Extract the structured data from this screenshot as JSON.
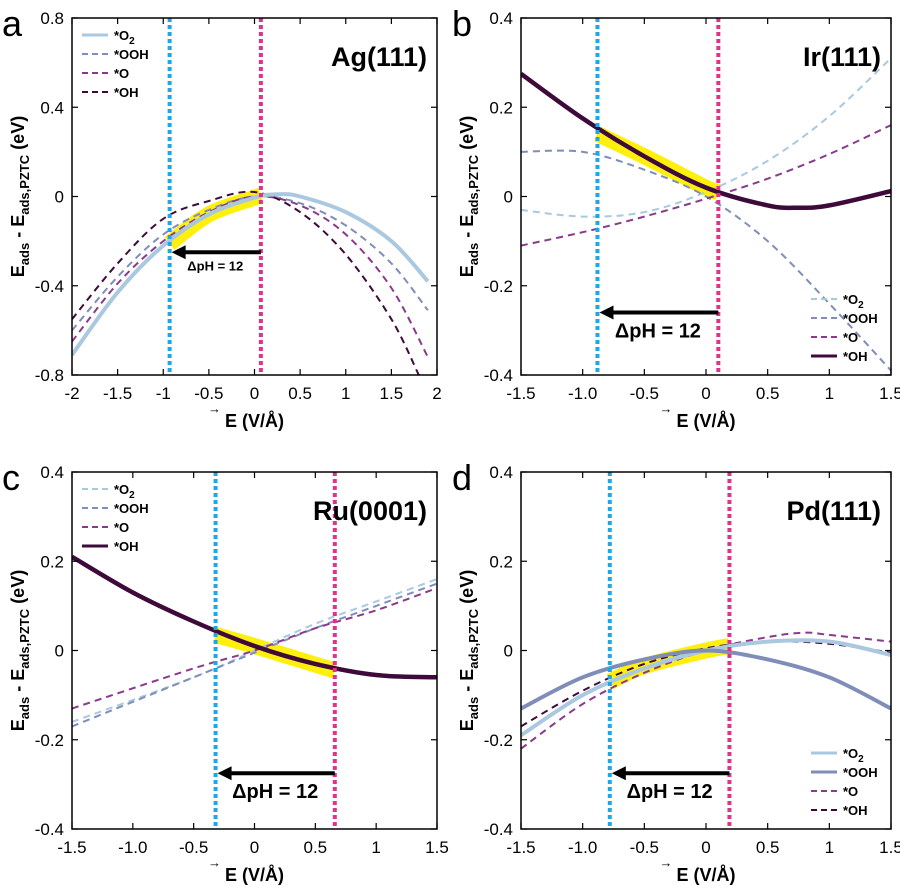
{
  "figure": {
    "ylabel_main": "E",
    "ylabel_sub1": "ads",
    "ylabel_mid": " - E",
    "ylabel_sub2": "ads,PZTC",
    "ylabel_unit": " (eV)",
    "xlabel_arrow": "→",
    "xlabel_main": "E",
    "xlabel_unit": " (V/Å)"
  },
  "colors": {
    "O2": "#aac8e0",
    "OOH": "#7f8db8",
    "O": "#8a3a8a",
    "OH": "#3d0a3a",
    "yellow": "#ffee00",
    "blue_line": "#1aa8e8",
    "pink_line": "#e0328c",
    "arrow": "#000000"
  },
  "chart_data": [
    {
      "panel_letter": "a",
      "title": "Ag(111)",
      "type": "line",
      "xlim": [
        -2,
        2
      ],
      "ylim": [
        -0.8,
        0.8
      ],
      "xticks": [
        -2,
        -1.5,
        -1,
        -0.5,
        0,
        0.5,
        1,
        1.5,
        2
      ],
      "xtick_labels": [
        "-2",
        "-1.5",
        "-1",
        "-0.5",
        "0",
        "0.5",
        "1",
        "1.5",
        "2"
      ],
      "yticks": [
        -0.8,
        -0.4,
        0,
        0.4,
        0.8
      ],
      "ytick_labels": [
        "-0.8",
        "-0.4",
        "0",
        "0.4",
        "0.8"
      ],
      "legend_position": "top-left",
      "series": [
        {
          "name": "*O2",
          "label_main": "*O",
          "label_sub": "2",
          "style": "solid",
          "color_key": "O2",
          "x": [
            -2,
            -1.5,
            -1,
            -0.5,
            0,
            0.25,
            0.5,
            1,
            1.5,
            1.9
          ],
          "y": [
            -0.71,
            -0.43,
            -0.22,
            -0.08,
            -0.005,
            0.01,
            0,
            -0.07,
            -0.2,
            -0.38
          ]
        },
        {
          "name": "*OOH",
          "label_main": "*OOH",
          "label_sub": "",
          "style": "dashed",
          "color_key": "OOH",
          "x": [
            -2,
            -1.5,
            -1,
            -0.5,
            0,
            0.5,
            1,
            1.5,
            1.9
          ],
          "y": [
            -0.6,
            -0.36,
            -0.17,
            -0.06,
            0,
            -0.03,
            -0.13,
            -0.3,
            -0.51
          ]
        },
        {
          "name": "*O",
          "label_main": "*O",
          "label_sub": "",
          "style": "dashed",
          "color_key": "O",
          "x": [
            -2,
            -1.5,
            -1,
            -0.5,
            0,
            0.5,
            1,
            1.5,
            1.9
          ],
          "y": [
            -0.65,
            -0.39,
            -0.2,
            -0.07,
            0,
            -0.04,
            -0.17,
            -0.41,
            -0.72
          ]
        },
        {
          "name": "*OH",
          "label_main": "*OH",
          "label_sub": "",
          "style": "dashed",
          "color_key": "OH",
          "x": [
            -2,
            -1.5,
            -1,
            -0.5,
            0,
            0.5,
            1,
            1.5,
            1.8
          ],
          "y": [
            -0.55,
            -0.3,
            -0.1,
            -0.02,
            0.02,
            -0.07,
            -0.26,
            -0.55,
            -0.8
          ]
        }
      ],
      "highlight": {
        "x": [
          -0.93,
          -0.5,
          0,
          0.07
        ],
        "y": [
          -0.21,
          -0.08,
          -0.005,
          0.005
        ]
      },
      "vline_blue": -0.93,
      "vline_pink": 0.07,
      "arrow": {
        "from": 0.07,
        "to": -0.93,
        "y": -0.25,
        "label": "ΔpH = 12",
        "label_size": "small"
      }
    },
    {
      "panel_letter": "b",
      "title": "Ir(111)",
      "type": "line",
      "xlim": [
        -1.5,
        1.5
      ],
      "ylim": [
        -0.4,
        0.4
      ],
      "xticks": [
        -1.5,
        -1,
        -0.5,
        0,
        0.5,
        1,
        1.5
      ],
      "xtick_labels": [
        "-1.5",
        "-1.0",
        "-0.5",
        "0",
        "0.5",
        "1",
        "1.5"
      ],
      "yticks": [
        -0.4,
        -0.2,
        0,
        0.2,
        0.4
      ],
      "ytick_labels": [
        "-0.4",
        "-0.2",
        "0",
        "0.2",
        "0.4"
      ],
      "legend_position": "bottom-right",
      "series": [
        {
          "name": "*O2",
          "label_main": "*O",
          "label_sub": "2",
          "style": "dashed",
          "color_key": "O2",
          "x": [
            -1.5,
            -1.0,
            -0.5,
            0,
            0.5,
            1.0,
            1.5
          ],
          "y": [
            -0.03,
            -0.045,
            -0.035,
            0.01,
            0.08,
            0.18,
            0.31
          ]
        },
        {
          "name": "*OOH",
          "label_main": "*OOH",
          "label_sub": "",
          "style": "dashed",
          "color_key": "OOH",
          "x": [
            -1.5,
            -1.0,
            -0.5,
            0,
            0.5,
            1.0,
            1.5
          ],
          "y": [
            0.1,
            0.1,
            0.06,
            0,
            -0.1,
            -0.24,
            -0.39
          ]
        },
        {
          "name": "*O",
          "label_main": "*O",
          "label_sub": "",
          "style": "dashed",
          "color_key": "O",
          "x": [
            -1.5,
            -1.0,
            -0.5,
            0,
            0.5,
            1.0,
            1.5
          ],
          "y": [
            -0.11,
            -0.08,
            -0.045,
            -0.005,
            0.04,
            0.095,
            0.16
          ]
        },
        {
          "name": "*OH",
          "label_main": "*OH",
          "label_sub": "",
          "style": "solid",
          "color_key": "OH",
          "x": [
            -1.5,
            -1.0,
            -0.5,
            0,
            0.5,
            0.75,
            1.0,
            1.5
          ],
          "y": [
            0.275,
            0.175,
            0.09,
            0.02,
            -0.02,
            -0.025,
            -0.02,
            0.012
          ]
        }
      ],
      "highlight": {
        "x": [
          -0.88,
          -0.5,
          0,
          0.1
        ],
        "y": [
          0.14,
          0.09,
          0.02,
          0.01
        ]
      },
      "vline_blue": -0.88,
      "vline_pink": 0.1,
      "arrow": {
        "from": 0.1,
        "to": -0.88,
        "y": -0.26,
        "label": "ΔpH = 12",
        "label_size": "large"
      }
    },
    {
      "panel_letter": "c",
      "title": "Ru(0001)",
      "type": "line",
      "xlim": [
        -1.5,
        1.5
      ],
      "ylim": [
        -0.4,
        0.4
      ],
      "xticks": [
        -1.5,
        -1,
        -0.5,
        0,
        0.5,
        1,
        1.5
      ],
      "xtick_labels": [
        "-1.5",
        "-1.0",
        "-0.5",
        "0",
        "0.5",
        "1",
        "1.5"
      ],
      "yticks": [
        -0.4,
        -0.2,
        0,
        0.2,
        0.4
      ],
      "ytick_labels": [
        "-0.4",
        "-0.2",
        "0",
        "0.2",
        "0.4"
      ],
      "legend_position": "top-left",
      "series": [
        {
          "name": "*O2",
          "label_main": "*O",
          "label_sub": "2",
          "style": "dashed",
          "color_key": "O2",
          "x": [
            -1.5,
            -0.5,
            0,
            0.5,
            1.0,
            1.5
          ],
          "y": [
            -0.16,
            -0.06,
            0,
            0.06,
            0.11,
            0.16
          ]
        },
        {
          "name": "*OOH",
          "label_main": "*OOH",
          "label_sub": "",
          "style": "dashed",
          "color_key": "OOH",
          "x": [
            -1.5,
            -0.5,
            0,
            0.5,
            1.0,
            1.5
          ],
          "y": [
            -0.17,
            -0.06,
            -0.005,
            0.05,
            0.1,
            0.15
          ]
        },
        {
          "name": "*O",
          "label_main": "*O",
          "label_sub": "",
          "style": "dashed",
          "color_key": "O",
          "x": [
            -1.5,
            -0.5,
            0,
            0.5,
            1.0,
            1.5
          ],
          "y": [
            -0.13,
            -0.04,
            0,
            0.05,
            0.09,
            0.14
          ]
        },
        {
          "name": "*OH",
          "label_main": "*OH",
          "label_sub": "",
          "style": "solid",
          "color_key": "OH",
          "x": [
            -1.5,
            -1.0,
            -0.5,
            0,
            0.5,
            1.0,
            1.5
          ],
          "y": [
            0.21,
            0.13,
            0.065,
            0.01,
            -0.03,
            -0.055,
            -0.06
          ]
        }
      ],
      "highlight": {
        "x": [
          -0.32,
          0,
          0.66
        ],
        "y": [
          0.035,
          0.01,
          -0.045
        ]
      },
      "vline_blue": -0.32,
      "vline_pink": 0.66,
      "arrow": {
        "from": 0.66,
        "to": -0.32,
        "y": -0.275,
        "label": "ΔpH = 12",
        "label_size": "large"
      }
    },
    {
      "panel_letter": "d",
      "title": "Pd(111)",
      "type": "line",
      "xlim": [
        -1.5,
        1.5
      ],
      "ylim": [
        -0.4,
        0.4
      ],
      "xticks": [
        -1.5,
        -1,
        -0.5,
        0,
        0.5,
        1,
        1.5
      ],
      "xtick_labels": [
        "-1.5",
        "-1.0",
        "-0.5",
        "0",
        "0.5",
        "1",
        "1.5"
      ],
      "yticks": [
        -0.4,
        -0.2,
        0,
        0.2,
        0.4
      ],
      "ytick_labels": [
        "-0.4",
        "-0.2",
        "0",
        "0.2",
        "0.4"
      ],
      "legend_position": "bottom-right",
      "series": [
        {
          "name": "*O2",
          "label_main": "*O",
          "label_sub": "2",
          "style": "solid",
          "color_key": "O2",
          "x": [
            -1.5,
            -1.0,
            -0.5,
            0,
            0.5,
            1.0,
            1.5
          ],
          "y": [
            -0.19,
            -0.1,
            -0.04,
            0,
            0.02,
            0.02,
            -0.01
          ]
        },
        {
          "name": "*OOH",
          "label_main": "*OOH",
          "label_sub": "",
          "style": "solid",
          "color_key": "OOH",
          "x": [
            -1.5,
            -1.0,
            -0.5,
            0,
            0.5,
            1.0,
            1.5
          ],
          "y": [
            -0.13,
            -0.06,
            -0.02,
            0,
            -0.02,
            -0.06,
            -0.13
          ]
        },
        {
          "name": "*O",
          "label_main": "*O",
          "label_sub": "",
          "style": "dashed",
          "color_key": "O",
          "x": [
            -1.5,
            -1.0,
            -0.5,
            0,
            0.5,
            0.8,
            1.0,
            1.5
          ],
          "y": [
            -0.22,
            -0.12,
            -0.05,
            0,
            0.03,
            0.04,
            0.035,
            0.02
          ]
        },
        {
          "name": "*OH",
          "label_main": "*OH",
          "label_sub": "",
          "style": "dashed",
          "color_key": "OH",
          "x": [
            -1.5,
            -1.0,
            -0.5,
            0,
            0.5,
            1.0,
            1.5
          ],
          "y": [
            -0.17,
            -0.09,
            -0.03,
            0.005,
            0.02,
            0.015,
            -0.005
          ]
        }
      ],
      "highlight": {
        "x": [
          -0.78,
          -0.5,
          0,
          0.19
        ],
        "y": [
          -0.07,
          -0.035,
          0,
          0.01
        ]
      },
      "vline_blue": -0.78,
      "vline_pink": 0.19,
      "arrow": {
        "from": 0.19,
        "to": -0.78,
        "y": -0.275,
        "label": "ΔpH = 12",
        "label_size": "large"
      }
    }
  ]
}
